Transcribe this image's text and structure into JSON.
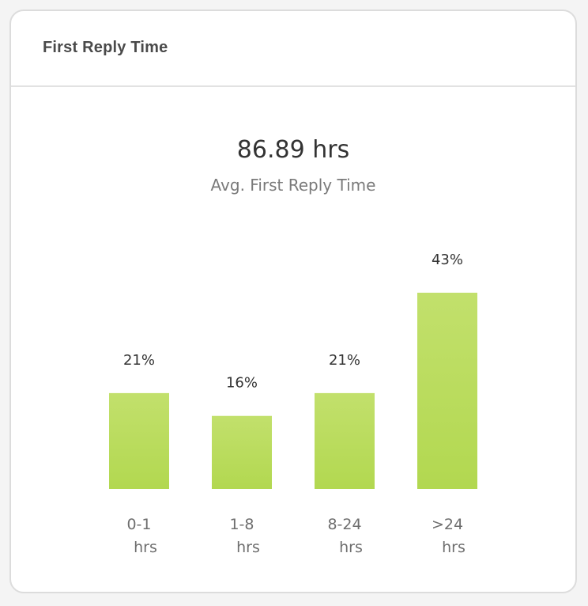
{
  "card": {
    "title": "First Reply Time"
  },
  "metric": {
    "value": "86.89 hrs",
    "label": "Avg. First Reply Time"
  },
  "colors": {
    "bar_top": "#c2e06c",
    "bar_bottom": "#b2d850"
  },
  "chart_data": {
    "type": "bar",
    "categories": [
      [
        "0-1",
        "hrs"
      ],
      [
        "1-8",
        "hrs"
      ],
      [
        "8-24",
        "hrs"
      ],
      [
        ">24",
        "hrs"
      ]
    ],
    "values": [
      21,
      16,
      21,
      43
    ],
    "value_labels": [
      "21%",
      "16%",
      "21%",
      "43%"
    ],
    "ylim": [
      0,
      50
    ],
    "grid": false,
    "legend": "none"
  }
}
